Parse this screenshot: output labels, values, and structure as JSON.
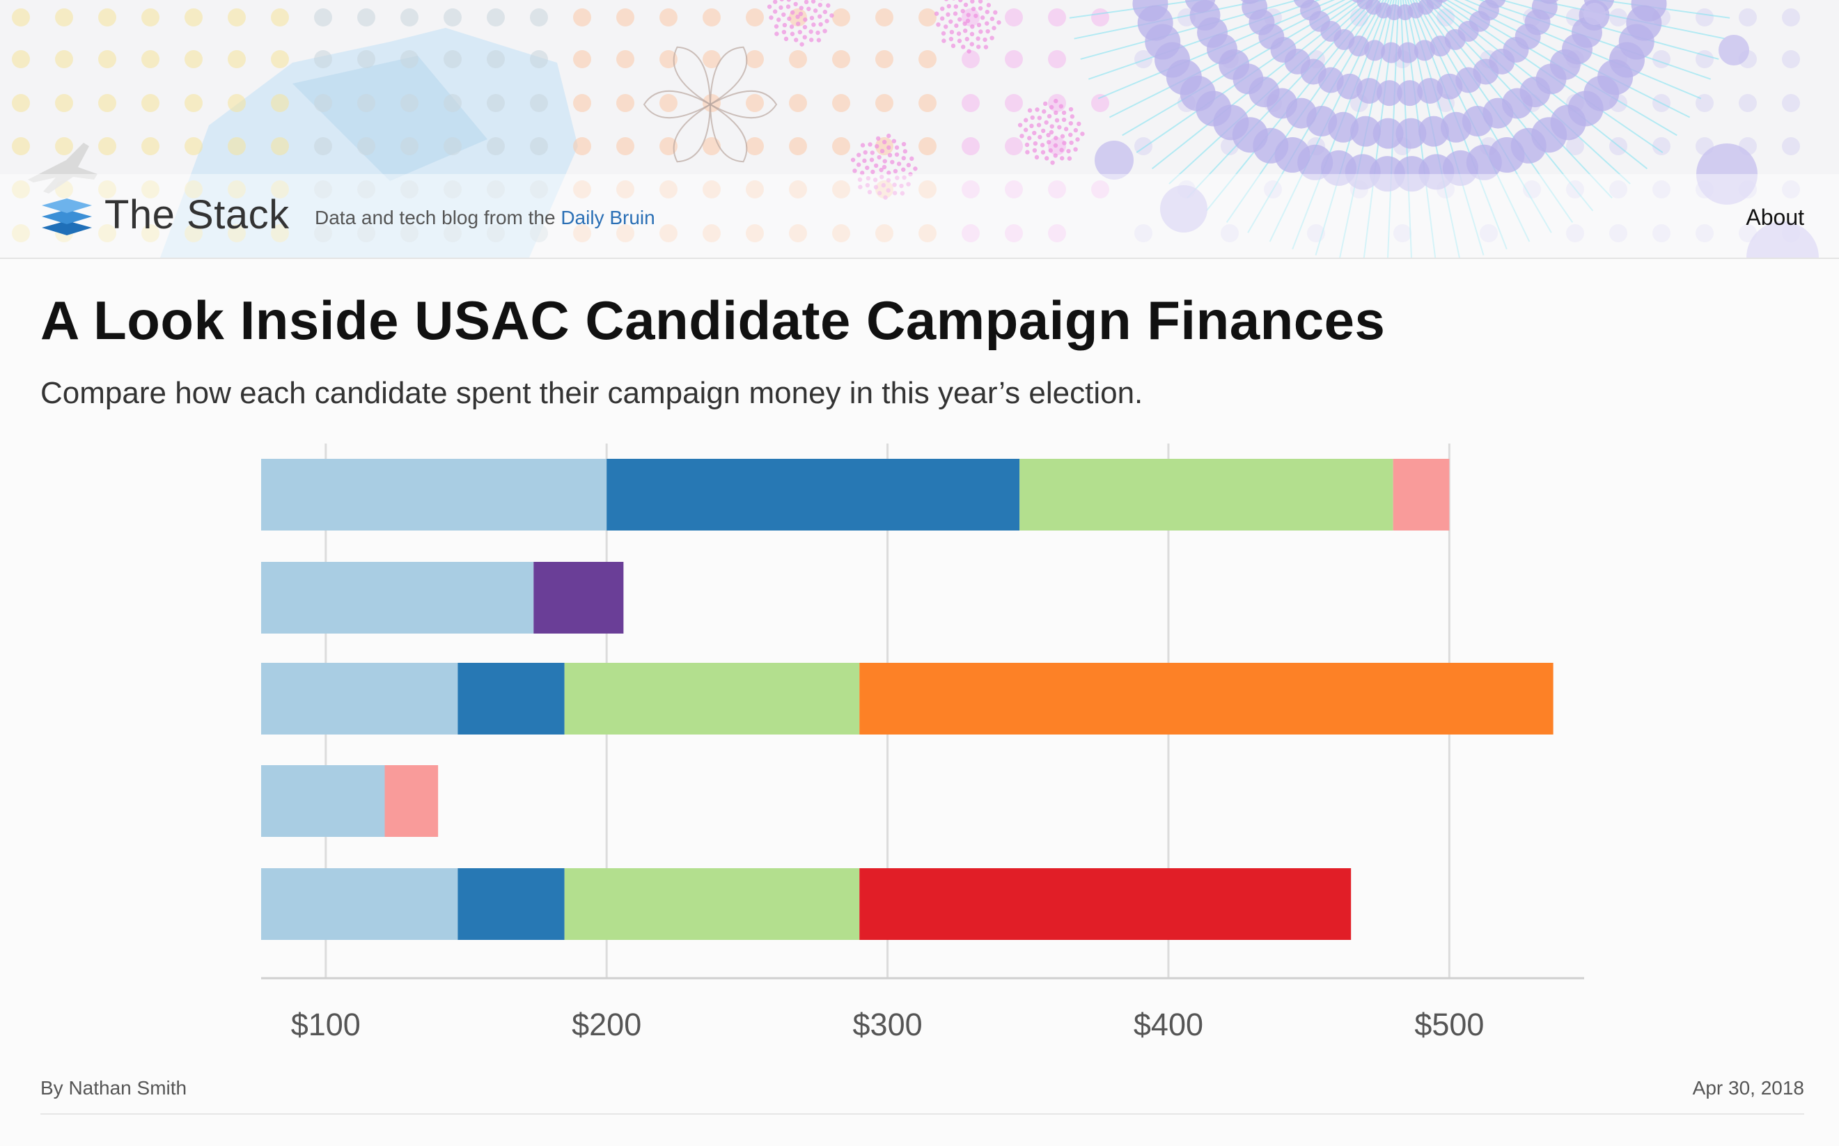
{
  "header": {
    "site_title": "The Stack",
    "tagline_prefix": "Data and tech blog from the ",
    "tagline_link": "Daily Bruin",
    "about_label": "About"
  },
  "article": {
    "title": "A Look Inside USAC Candidate Campaign Finances",
    "subtitle": "Compare how each candidate spent their campaign money in this year’s election.",
    "author": "By Nathan Smith",
    "date": "Apr 30, 2018"
  },
  "colors": {
    "light_blue": "#a9cde3",
    "dark_blue": "#2778b4",
    "light_green": "#b3df8e",
    "pink": "#f99b9a",
    "purple": "#6a3e97",
    "orange": "#fd8126",
    "red": "#e11e27"
  },
  "chart_data": {
    "type": "bar",
    "orientation": "horizontal",
    "stacked": true,
    "xlim": [
      77,
      548
    ],
    "x_ticks": [
      100,
      200,
      300,
      400,
      500
    ],
    "x_tick_labels": [
      "$100",
      "$200",
      "$300",
      "$400",
      "$500"
    ],
    "grid": true,
    "rows": [
      {
        "segments": [
          {
            "from": 77,
            "to": 200,
            "color": "#a9cde3"
          },
          {
            "from": 200,
            "to": 347,
            "color": "#2778b4"
          },
          {
            "from": 347,
            "to": 480,
            "color": "#b3df8e"
          },
          {
            "from": 480,
            "to": 500,
            "color": "#f99b9a"
          }
        ]
      },
      {
        "segments": [
          {
            "from": 77,
            "to": 174,
            "color": "#a9cde3"
          },
          {
            "from": 174,
            "to": 206,
            "color": "#6a3e97"
          }
        ]
      },
      {
        "segments": [
          {
            "from": 77,
            "to": 147,
            "color": "#a9cde3"
          },
          {
            "from": 147,
            "to": 185,
            "color": "#2778b4"
          },
          {
            "from": 185,
            "to": 290,
            "color": "#b3df8e"
          },
          {
            "from": 290,
            "to": 537,
            "color": "#fd8126"
          }
        ]
      },
      {
        "segments": [
          {
            "from": 77,
            "to": 121,
            "color": "#a9cde3"
          },
          {
            "from": 121,
            "to": 140,
            "color": "#f99b9a"
          }
        ]
      },
      {
        "segments": [
          {
            "from": 77,
            "to": 147,
            "color": "#a9cde3"
          },
          {
            "from": 147,
            "to": 185,
            "color": "#2778b4"
          },
          {
            "from": 185,
            "to": 290,
            "color": "#b3df8e"
          },
          {
            "from": 290,
            "to": 465,
            "color": "#e11e27"
          }
        ]
      }
    ]
  }
}
